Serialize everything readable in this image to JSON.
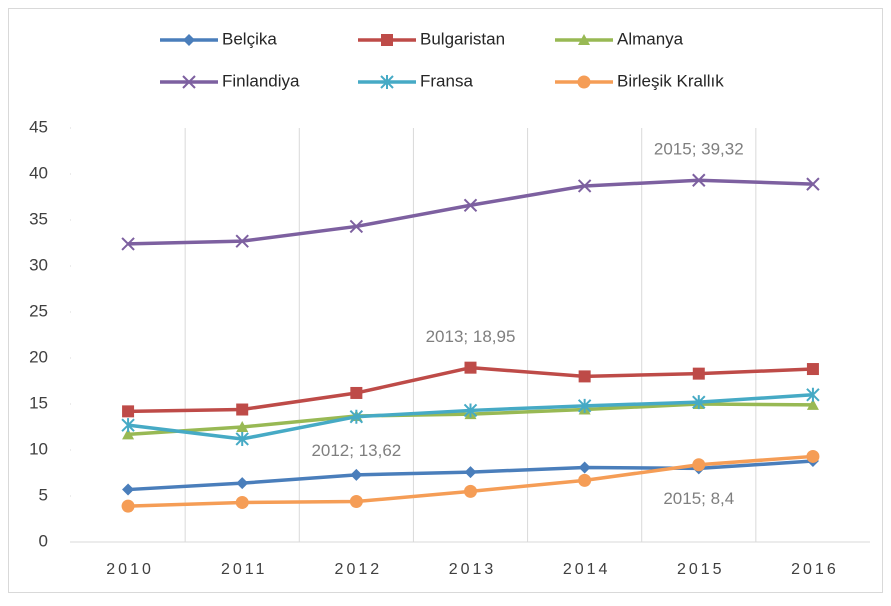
{
  "chart_data": {
    "type": "line",
    "categories": [
      "2010",
      "2011",
      "2012",
      "2013",
      "2014",
      "2015",
      "2016"
    ],
    "series": [
      {
        "name": "Belçika",
        "color": "#4a7ebb",
        "marker": "diamond",
        "values": [
          5.7,
          6.4,
          7.3,
          7.6,
          8.1,
          8.0,
          8.8
        ]
      },
      {
        "name": "Bulgaristan",
        "color": "#be4b48",
        "marker": "square",
        "values": [
          14.2,
          14.4,
          16.2,
          18.95,
          18.0,
          18.3,
          18.8
        ],
        "value_labels": [
          null,
          null,
          null,
          "2013; 18,95",
          null,
          null,
          null
        ]
      },
      {
        "name": "Almanya",
        "color": "#98b954",
        "marker": "triangle",
        "values": [
          11.7,
          12.5,
          13.7,
          13.9,
          14.4,
          15.0,
          14.9
        ]
      },
      {
        "name": "Finlandiya",
        "color": "#7d60a0",
        "marker": "x",
        "values": [
          32.4,
          32.7,
          34.3,
          36.6,
          38.7,
          39.32,
          38.9
        ],
        "value_labels": [
          null,
          null,
          null,
          null,
          null,
          "2015; 39,32",
          null
        ]
      },
      {
        "name": "Fransa",
        "color": "#46aac5",
        "marker": "star",
        "values": [
          12.7,
          11.2,
          13.62,
          14.3,
          14.8,
          15.2,
          16.0
        ],
        "value_labels": [
          null,
          null,
          "2012; 13,62",
          null,
          null,
          null,
          null
        ]
      },
      {
        "name": "Birleşik Krallık",
        "color": "#f59d56",
        "marker": "circle",
        "values": [
          3.9,
          4.3,
          4.4,
          5.5,
          6.7,
          8.4,
          9.3
        ],
        "value_labels": [
          null,
          null,
          null,
          null,
          null,
          "2015; 8,4",
          null
        ]
      }
    ],
    "ylim": [
      0,
      45
    ],
    "yticks": [
      0,
      5,
      10,
      15,
      20,
      25,
      30,
      35,
      40,
      45
    ],
    "grid": "x",
    "legend": "top"
  }
}
